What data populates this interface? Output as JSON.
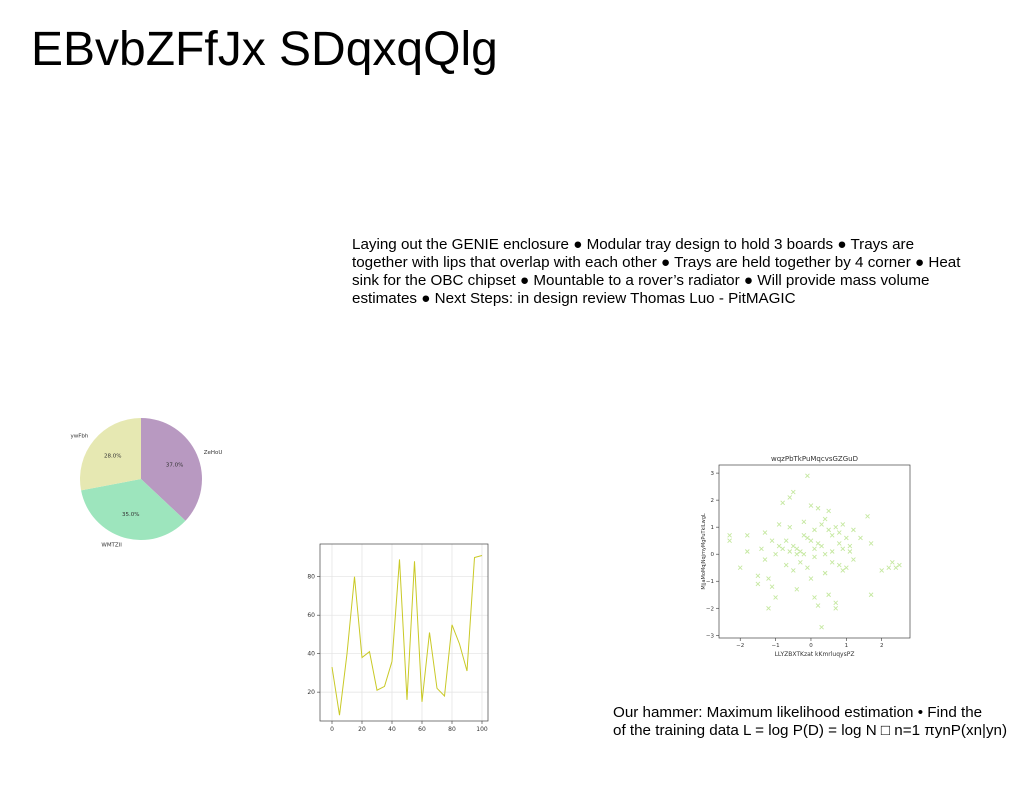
{
  "slide": {
    "title": "EBvbZFfJx SDqxqQlg",
    "bullet_text": "Laying out the GENIE enclosure ● Modular tray design to hold 3 boards ● Trays are together with lips that overlap with each other ● Trays are held together by 4 corner ● Heat sink for the OBC chipset ● Mountable to a rover’s radiator ● Will provide mass volume estimates ● Next Steps: in design review Thomas Luo - PitMAGIC",
    "hammer_line1": "Our hammer: Maximum likelihood estimation • Find the",
    "hammer_line2": "of the training data L = log P(D) = log N □ n=1 πynP(xn|yn)"
  },
  "chart_data": [
    {
      "type": "pie",
      "labels": [
        "ZeHoU",
        "WMTZII",
        "ywFbh"
      ],
      "values": [
        37.0,
        35.0,
        28.0
      ],
      "value_labels": [
        "37.0%",
        "35.0%",
        "28.0%"
      ],
      "colors": [
        "#b899c1",
        "#9de5bd",
        "#e6e8b2"
      ],
      "start_angle_deg": 90,
      "direction": "clockwise"
    },
    {
      "type": "line",
      "x": [
        0,
        5,
        10,
        15,
        20,
        25,
        30,
        35,
        40,
        45,
        50,
        55,
        60,
        65,
        70,
        75,
        80,
        85,
        90,
        95,
        100
      ],
      "y": [
        33,
        8,
        40,
        80,
        38,
        41,
        21,
        23,
        36,
        89,
        16,
        88,
        15,
        51,
        22,
        18,
        55,
        45,
        31,
        90,
        91
      ],
      "color": "#c9c926",
      "xlim": [
        -8,
        104
      ],
      "ylim": [
        5,
        97
      ],
      "xticks": [
        "0",
        "20",
        "40",
        "60",
        "80",
        "100"
      ],
      "yticks": [
        "20",
        "40",
        "60",
        "80"
      ],
      "grid": true
    },
    {
      "type": "scatter",
      "title": "wqzPbTkPuMqcvsGZGuD",
      "xlabel": "LLYZBXTKzat kKmrluqysPZ",
      "ylabel": "MjjaMoMqjNqjmyMgPuTklLwgL",
      "marker": "x",
      "color": "#c5e8a0",
      "xlim": [
        -2.6,
        2.8
      ],
      "ylim": [
        -3.1,
        3.3
      ],
      "xticks": [
        "−2",
        "−1",
        "0",
        "1",
        "2"
      ],
      "yticks": [
        "3",
        "2",
        "1",
        "0",
        "−1",
        "−2",
        "−3"
      ],
      "points": [
        [
          -2.3,
          0.7
        ],
        [
          -2.3,
          0.5
        ],
        [
          -2.0,
          -0.5
        ],
        [
          -1.8,
          0.1
        ],
        [
          -1.8,
          0.7
        ],
        [
          -1.5,
          -0.8
        ],
        [
          -1.5,
          -1.1
        ],
        [
          -1.4,
          0.2
        ],
        [
          -1.3,
          0.8
        ],
        [
          -1.3,
          -0.2
        ],
        [
          -1.2,
          -0.9
        ],
        [
          -1.2,
          -2.0
        ],
        [
          -1.1,
          0.5
        ],
        [
          -1.1,
          -1.2
        ],
        [
          -1.0,
          0.0
        ],
        [
          -1.0,
          -1.6
        ],
        [
          -0.9,
          0.3
        ],
        [
          -0.9,
          1.1
        ],
        [
          -0.8,
          0.2
        ],
        [
          -0.8,
          1.9
        ],
        [
          -0.7,
          0.5
        ],
        [
          -0.7,
          -0.4
        ],
        [
          -0.6,
          2.1
        ],
        [
          -0.6,
          1.0
        ],
        [
          -0.6,
          0.1
        ],
        [
          -0.5,
          2.3
        ],
        [
          -0.5,
          0.3
        ],
        [
          -0.5,
          -0.6
        ],
        [
          -0.4,
          0.0
        ],
        [
          -0.4,
          0.2
        ],
        [
          -0.4,
          -1.3
        ],
        [
          -0.3,
          0.1
        ],
        [
          -0.3,
          -0.3
        ],
        [
          -0.2,
          0.0
        ],
        [
          -0.2,
          0.7
        ],
        [
          -0.2,
          1.2
        ],
        [
          -0.1,
          2.9
        ],
        [
          -0.1,
          0.6
        ],
        [
          -0.1,
          -0.5
        ],
        [
          0.0,
          0.5
        ],
        [
          0.0,
          -0.9
        ],
        [
          0.0,
          1.8
        ],
        [
          0.1,
          0.2
        ],
        [
          0.1,
          0.9
        ],
        [
          0.1,
          -0.1
        ],
        [
          0.1,
          -1.6
        ],
        [
          0.2,
          0.4
        ],
        [
          0.2,
          -1.9
        ],
        [
          0.2,
          1.7
        ],
        [
          0.3,
          -2.7
        ],
        [
          0.3,
          0.3
        ],
        [
          0.3,
          1.1
        ],
        [
          0.4,
          0.0
        ],
        [
          0.4,
          -0.7
        ],
        [
          0.4,
          1.3
        ],
        [
          0.5,
          0.9
        ],
        [
          0.5,
          -1.5
        ],
        [
          0.5,
          1.6
        ],
        [
          0.6,
          0.1
        ],
        [
          0.6,
          -0.3
        ],
        [
          0.6,
          0.7
        ],
        [
          0.7,
          1.0
        ],
        [
          0.7,
          -1.8
        ],
        [
          0.7,
          -2.0
        ],
        [
          0.8,
          0.4
        ],
        [
          0.8,
          -0.4
        ],
        [
          0.8,
          0.8
        ],
        [
          0.9,
          -0.6
        ],
        [
          0.9,
          0.2
        ],
        [
          0.9,
          1.1
        ],
        [
          1.0,
          -0.5
        ],
        [
          1.0,
          0.6
        ],
        [
          1.1,
          0.1
        ],
        [
          1.1,
          0.3
        ],
        [
          1.2,
          -0.2
        ],
        [
          1.2,
          0.9
        ],
        [
          1.4,
          0.6
        ],
        [
          1.6,
          1.4
        ],
        [
          1.7,
          -1.5
        ],
        [
          1.7,
          0.4
        ],
        [
          2.0,
          -0.6
        ],
        [
          2.2,
          -0.5
        ],
        [
          2.3,
          -0.3
        ],
        [
          2.4,
          -0.5
        ],
        [
          2.5,
          -0.4
        ]
      ]
    }
  ]
}
